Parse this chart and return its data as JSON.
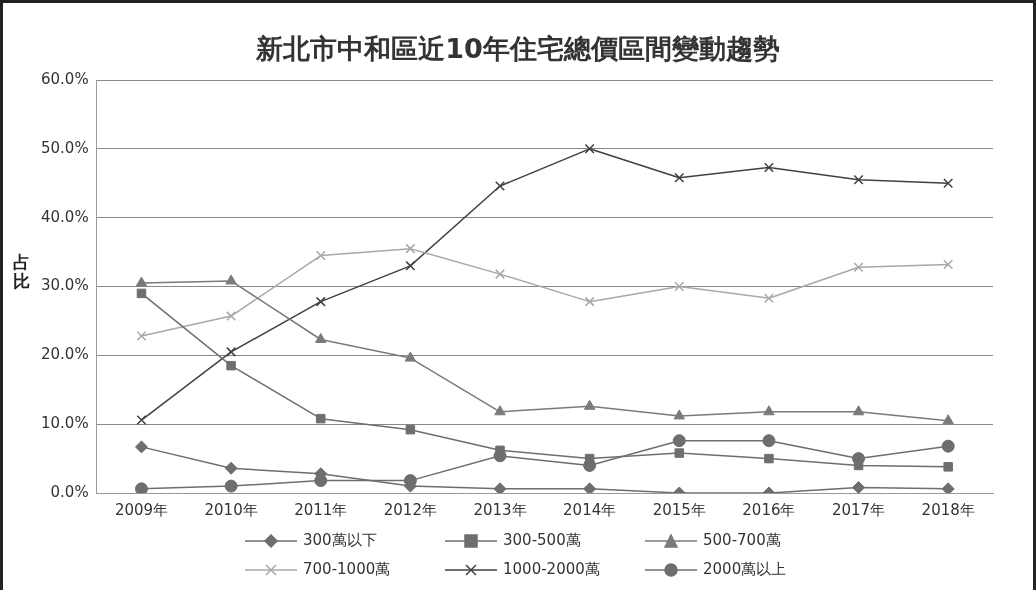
{
  "chart_data": {
    "type": "line",
    "title": "新北市中和區近10年住宅總價區間變動趨勢",
    "ylabel": "占比",
    "categories": [
      "2009年",
      "2010年",
      "2011年",
      "2012年",
      "2013年",
      "2014年",
      "2015年",
      "2016年",
      "2017年",
      "2018年"
    ],
    "series": [
      {
        "name": "300萬以下",
        "color": "#6e6e6e",
        "marker": "diamond",
        "values": [
          6.7,
          3.6,
          2.8,
          1.0,
          0.6,
          0.6,
          0.0,
          0.0,
          0.8,
          0.6
        ]
      },
      {
        "name": "300-500萬",
        "color": "#6e6e6e",
        "marker": "square",
        "values": [
          29.0,
          18.5,
          10.8,
          9.2,
          6.2,
          5.0,
          5.8,
          5.0,
          4.0,
          3.8
        ]
      },
      {
        "name": "500-700萬",
        "color": "#7a7a7a",
        "marker": "triangle",
        "values": [
          30.5,
          30.8,
          22.3,
          19.6,
          11.8,
          12.6,
          11.2,
          11.8,
          11.8,
          10.5
        ]
      },
      {
        "name": "700-1000萬",
        "color": "#a8a8a8",
        "marker": "cross",
        "values": [
          22.8,
          25.7,
          34.5,
          35.5,
          31.8,
          27.8,
          30.0,
          28.3,
          32.8,
          33.2
        ]
      },
      {
        "name": "1000-2000萬",
        "color": "#404040",
        "marker": "cross",
        "values": [
          10.6,
          20.5,
          27.8,
          33.0,
          44.6,
          50.0,
          45.8,
          47.3,
          45.5,
          45.0
        ]
      },
      {
        "name": "2000萬以上",
        "color": "#6e6e6e",
        "marker": "circle",
        "values": [
          0.6,
          1.0,
          1.8,
          1.8,
          5.4,
          4.0,
          7.6,
          7.6,
          5.0,
          6.8
        ]
      }
    ],
    "ylim": [
      0,
      60
    ],
    "yticks": [
      {
        "value": 0,
        "label": "0.0%"
      },
      {
        "value": 10,
        "label": "10.0%"
      },
      {
        "value": 20,
        "label": "20.0%"
      },
      {
        "value": 30,
        "label": "30.0%"
      },
      {
        "value": 40,
        "label": "40.0%"
      },
      {
        "value": 50,
        "label": "50.0%"
      },
      {
        "value": 60,
        "label": "60.0%"
      }
    ],
    "grid": "y",
    "legend": "bottom",
    "line_style": "solid"
  }
}
